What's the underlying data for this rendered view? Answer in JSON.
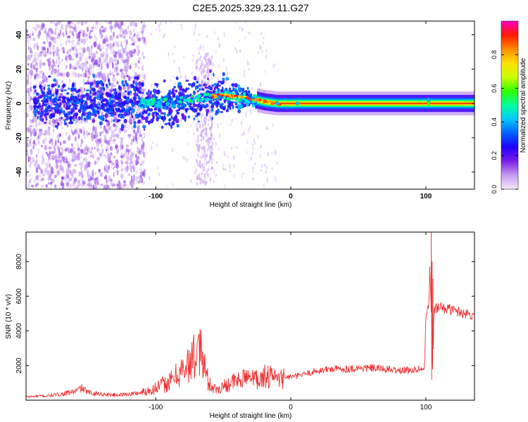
{
  "chart_data": [
    {
      "type": "heatmap",
      "title": "C2E5.2025.329.23.11.G27",
      "xlabel": "Height of straight line (km)",
      "ylabel": "Frequency (Hz)",
      "xlim": [
        -196,
        136
      ],
      "ylim": [
        -50,
        48
      ],
      "xticks": [
        -100,
        0,
        100
      ],
      "yticks": [
        40,
        20,
        0,
        -20,
        -40
      ],
      "colorbar": {
        "label": "Normalized spectral amplitude",
        "range": [
          0,
          1
        ],
        "ticks": [
          "0.0",
          "0.2",
          "0.4",
          "0.6",
          "0.8"
        ],
        "colors": [
          "#f3e8fb",
          "#c79cf0",
          "#7c1ee6",
          "#2200ff",
          "#0060ff",
          "#00c8ff",
          "#00ff9c",
          "#30ff00",
          "#c8ff00",
          "#ffe000",
          "#ff8a00",
          "#ff1a00",
          "#ff00c8"
        ]
      },
      "ridge": {
        "x": [
          -170,
          -150,
          -130,
          -110,
          -100,
          -90,
          -80,
          -70,
          -60,
          -50,
          -40,
          -30,
          -20,
          -10,
          0,
          20,
          40,
          60,
          80,
          100,
          110,
          136
        ],
        "y": [
          0,
          0,
          0,
          0,
          0,
          0,
          1,
          3,
          4,
          5,
          4,
          3,
          1,
          0,
          0,
          0,
          0,
          0,
          0,
          0,
          0,
          0
        ]
      },
      "grid": false
    },
    {
      "type": "line",
      "xlabel": "Height of straight line (km)",
      "ylabel": "SNR (10 * v/v)",
      "xlim": [
        -196,
        136
      ],
      "ylim": [
        0,
        9700
      ],
      "xticks": [
        -100,
        0,
        100
      ],
      "yticks": [
        2000,
        4000,
        6000,
        8000
      ],
      "series": [
        {
          "color": "#ee3333",
          "x": [
            -196,
            -180,
            -170,
            -160,
            -155,
            -150,
            -140,
            -130,
            -120,
            -110,
            -100,
            -95,
            -90,
            -85,
            -80,
            -75,
            -70,
            -67,
            -65,
            -62,
            -60,
            -55,
            -50,
            -45,
            -40,
            -35,
            -30,
            -25,
            -20,
            -15,
            -10,
            -5,
            0,
            5,
            10,
            20,
            30,
            40,
            50,
            60,
            70,
            80,
            90,
            95,
            99,
            100,
            102,
            103,
            104,
            105,
            106,
            108,
            110,
            115,
            120,
            125,
            130,
            136
          ],
          "y": [
            200,
            250,
            350,
            500,
            700,
            450,
            350,
            300,
            350,
            450,
            700,
            900,
            1000,
            1400,
            1800,
            2100,
            2400,
            2800,
            2300,
            1300,
            900,
            600,
            800,
            1000,
            1100,
            1200,
            1200,
            1250,
            1300,
            1250,
            1200,
            1300,
            1350,
            1400,
            1500,
            1700,
            1800,
            1800,
            1850,
            1850,
            1800,
            1700,
            1750,
            1800,
            1800,
            5000,
            5300,
            7500,
            5000,
            1900,
            5200,
            5300,
            5350,
            5300,
            5200,
            5100,
            5000,
            4900
          ]
        }
      ],
      "grid": false
    }
  ]
}
